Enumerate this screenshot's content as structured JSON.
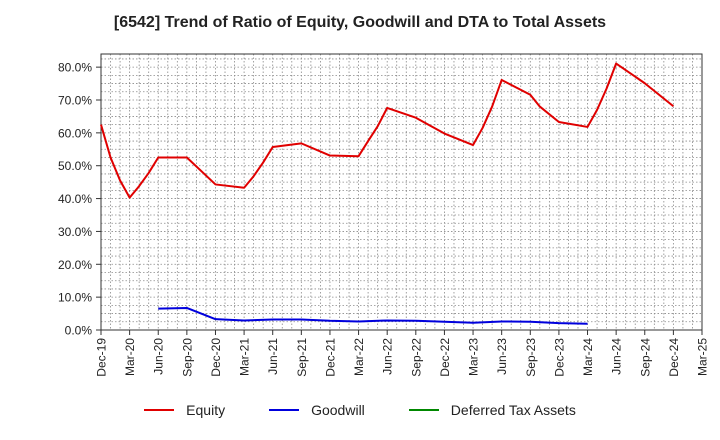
{
  "chart_data": {
    "type": "line",
    "title": "[6542]  Trend of Ratio of Equity, Goodwill and DTA to Total Assets",
    "xlabel": "",
    "ylabel": "",
    "ylim": [
      0,
      84
    ],
    "x_tick_labels": [
      "Dec-19",
      "Mar-20",
      "Jun-20",
      "Sep-20",
      "Dec-20",
      "Mar-21",
      "Jun-21",
      "Sep-21",
      "Dec-21",
      "Mar-22",
      "Jun-22",
      "Sep-22",
      "Dec-22",
      "Mar-23",
      "Jun-23",
      "Sep-23",
      "Dec-23",
      "Mar-24",
      "Jun-24",
      "Sep-24",
      "Dec-24",
      "Mar-25"
    ],
    "y_ticks": [
      0,
      10,
      20,
      30,
      40,
      50,
      60,
      70,
      80
    ],
    "y_tick_labels": [
      "0.0%",
      "10.0%",
      "20.0%",
      "30.0%",
      "40.0%",
      "50.0%",
      "60.0%",
      "70.0%",
      "80.0%"
    ],
    "grid": true,
    "legend_position": "bottom",
    "series": [
      {
        "name": "Equity",
        "color": "#e00000",
        "points": [
          [
            "Dec-19",
            62.5
          ],
          [
            "Jan-20",
            52.5
          ],
          [
            "Feb-20",
            45.5
          ],
          [
            "Mar-20",
            40.3
          ],
          [
            "Apr-20",
            43.8
          ],
          [
            "May-20",
            47.8
          ],
          [
            "Jun-20",
            52.5
          ],
          [
            "Sep-20",
            52.5
          ],
          [
            "Dec-20",
            44.3
          ],
          [
            "Mar-21",
            43.3
          ],
          [
            "Apr-21",
            46.8
          ],
          [
            "May-21",
            51.0
          ],
          [
            "Jun-21",
            55.7
          ],
          [
            "Sep-21",
            56.8
          ],
          [
            "Dec-21",
            53.1
          ],
          [
            "Mar-22",
            52.9
          ],
          [
            "Apr-22",
            57.5
          ],
          [
            "May-22",
            62.0
          ],
          [
            "Jun-22",
            67.6
          ],
          [
            "Sep-22",
            64.6
          ],
          [
            "Dec-22",
            59.8
          ],
          [
            "Mar-23",
            56.3
          ],
          [
            "Apr-23",
            61.5
          ],
          [
            "May-23",
            68.0
          ],
          [
            "Jun-23",
            76.1
          ],
          [
            "Sep-23",
            71.6
          ],
          [
            "Oct-23",
            68.0
          ],
          [
            "Dec-23",
            63.3
          ],
          [
            "Mar-24",
            61.8
          ],
          [
            "Apr-24",
            67.0
          ],
          [
            "May-24",
            73.5
          ],
          [
            "Jun-24",
            81.1
          ],
          [
            "Sep-24",
            75.1
          ],
          [
            "Dec-24",
            68.1
          ]
        ]
      },
      {
        "name": "Goodwill",
        "color": "#0000dd",
        "points": [
          [
            "Jun-20",
            6.5
          ],
          [
            "Sep-20",
            6.7
          ],
          [
            "Dec-20",
            3.3
          ],
          [
            "Mar-21",
            2.9
          ],
          [
            "Jun-21",
            3.2
          ],
          [
            "Sep-21",
            3.2
          ],
          [
            "Dec-21",
            2.8
          ],
          [
            "Mar-22",
            2.6
          ],
          [
            "Jun-22",
            2.9
          ],
          [
            "Sep-22",
            2.8
          ],
          [
            "Dec-22",
            2.5
          ],
          [
            "Mar-23",
            2.2
          ],
          [
            "Jun-23",
            2.6
          ],
          [
            "Sep-23",
            2.5
          ],
          [
            "Dec-23",
            2.1
          ],
          [
            "Mar-24",
            1.9
          ]
        ]
      },
      {
        "name": "Deferred Tax Assets",
        "color": "#008800",
        "points": []
      }
    ]
  }
}
